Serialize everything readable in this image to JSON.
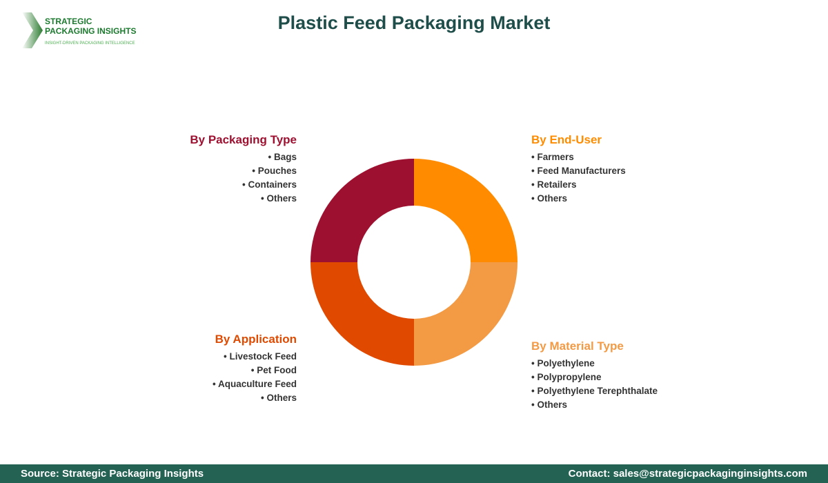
{
  "logo": {
    "line1": "STRATEGIC",
    "line2": "PACKAGING INSIGHTS",
    "tagline": "INSIGHT-DRIVEN PACKAGING INTELLIGENCE"
  },
  "title": "Plastic Feed Packaging Market",
  "segments": [
    {
      "heading": "By Packaging Type",
      "color": "#9E1030",
      "items": [
        "Bags",
        "Pouches",
        "Containers",
        "Others"
      ]
    },
    {
      "heading": "By End-User",
      "color": "#FF8C00",
      "items": [
        "Farmers",
        "Feed Manufacturers",
        "Retailers",
        "Others"
      ]
    },
    {
      "heading": "By Application",
      "color": "#E04A00",
      "items": [
        "Livestock Feed",
        "Pet Food",
        "Aquaculture Feed",
        "Others"
      ]
    },
    {
      "heading": "By Material Type",
      "color": "#F39A45",
      "items": [
        "Polyethylene",
        "Polypropylene",
        "Polyethylene Terephthalate",
        "Others"
      ]
    }
  ],
  "footer": {
    "source": "Source: Strategic Packaging Insights",
    "contact": "Contact: sales@strategicpackaginginsights.com"
  }
}
